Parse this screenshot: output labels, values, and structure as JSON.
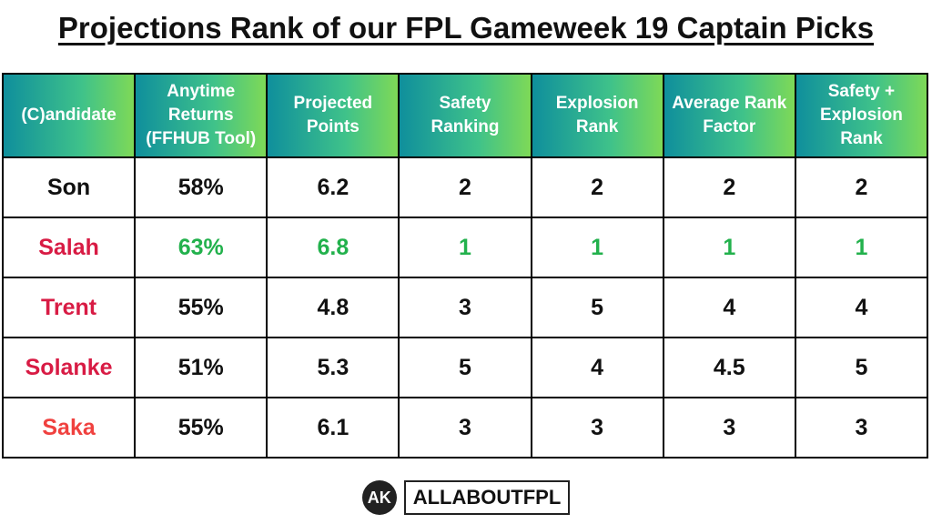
{
  "header": {
    "title": "Projections Rank of our FPL Gameweek 19 Captain Picks"
  },
  "table": {
    "columns": [
      "(C)andidate",
      "Anytime Returns (FFHUB Tool)",
      "Projected Points",
      "Safety Ranking",
      "Explosion Rank",
      "Average Rank Factor",
      "Safety + Explosion Rank"
    ],
    "rows": [
      [
        "Son",
        "58%",
        "6.2",
        "2",
        "2",
        "2",
        "2"
      ],
      [
        "Salah",
        "63%",
        "6.8",
        "1",
        "1",
        "1",
        "1"
      ],
      [
        "Trent",
        "55%",
        "4.8",
        "3",
        "5",
        "4",
        "4"
      ],
      [
        "Solanke",
        "51%",
        "5.3",
        "5",
        "4",
        "4.5",
        "5"
      ],
      [
        "Saka",
        "55%",
        "6.1",
        "3",
        "3",
        "3",
        "3"
      ]
    ]
  },
  "footer": {
    "badge": "AK",
    "brand": "ALLABOUTFPL"
  }
}
